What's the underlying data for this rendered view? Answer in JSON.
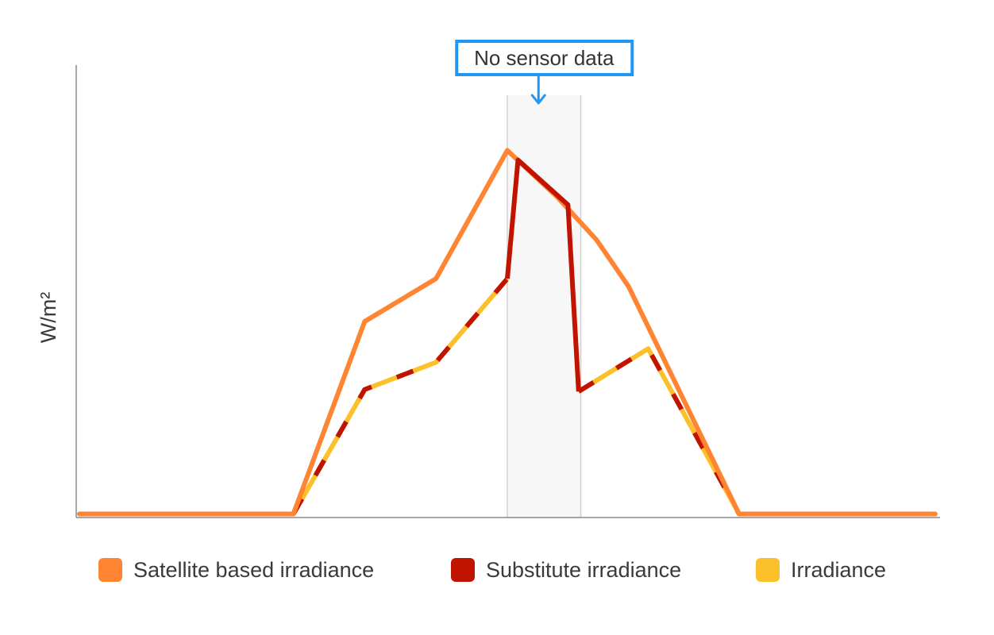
{
  "chart_data": {
    "type": "line",
    "title": "",
    "xlabel": "",
    "ylabel": "W/m²",
    "ylim": [
      0,
      1000
    ],
    "grid": false,
    "legend_position": "bottom",
    "x": [
      0,
      1,
      2,
      3,
      4,
      5,
      6,
      7,
      8,
      9,
      10,
      11,
      12,
      13,
      14,
      15,
      16,
      17,
      18,
      19,
      20,
      21,
      22,
      23,
      24
    ],
    "annotation": {
      "text": "No sensor data",
      "x_start": 12.0,
      "x_end": 14.06,
      "color": "#2196f3"
    },
    "series": [
      {
        "name": "Satellite based irradiance",
        "color": "#ff8533",
        "style": "solid",
        "x": [
          0,
          6,
          8,
          10,
          12,
          13.4,
          14.5,
          15.4,
          18.5,
          24
        ],
        "values": [
          5,
          5,
          500,
          610,
          940,
          820,
          710,
          590,
          5,
          5
        ]
      },
      {
        "name": "Substitute irradiance",
        "color": "#c01400",
        "style": "solid",
        "x": [
          12,
          12.3,
          13.7,
          14.0
        ],
        "values": [
          610,
          915,
          800,
          320
        ]
      },
      {
        "name": "Irradiance",
        "color": "#fcc02a",
        "dash_color": "#c01400",
        "style": "dashed-mixed",
        "x": [
          6,
          8,
          10,
          12
        ],
        "values": [
          5,
          325,
          395,
          610
        ],
        "x2": [
          14.0,
          15.95,
          18.5
        ],
        "values2": [
          320,
          430,
          5
        ]
      }
    ]
  }
}
